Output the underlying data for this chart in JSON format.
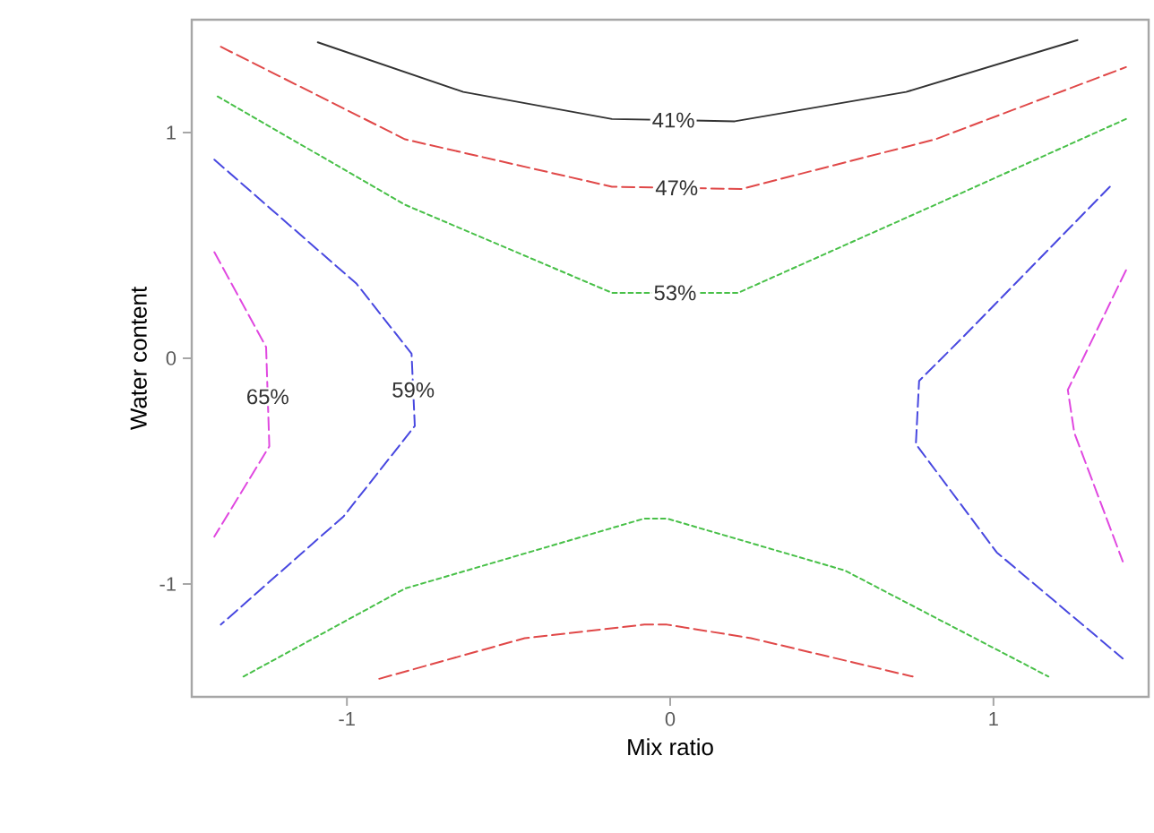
{
  "chart_data": {
    "type": "line",
    "xlabel": "Mix ratio",
    "ylabel": "Water content",
    "xlim": [
      -1.48,
      1.48
    ],
    "ylim": [
      -1.5,
      1.5
    ],
    "xticks": [
      -1,
      0,
      1
    ],
    "yticks": [
      -1,
      0,
      1
    ],
    "grid": false,
    "marker": "none",
    "series": [
      {
        "color": "#333333",
        "line_style": "solid",
        "x": [
          -1.09,
          -0.64,
          -0.18,
          0.2,
          0.73,
          1.26
        ],
        "values": [
          1.4,
          1.18,
          1.06,
          1.05,
          1.18,
          1.41
        ]
      },
      {
        "color": "#e04848",
        "line_style": "dashed",
        "x": [
          -1.39,
          -0.82,
          -0.18,
          0.22,
          0.82,
          1.41
        ],
        "values": [
          1.38,
          0.97,
          0.76,
          0.75,
          0.97,
          1.29
        ]
      },
      {
        "color": "#48c048",
        "line_style": "dotted",
        "x": [
          -1.4,
          -0.82,
          -0.18,
          0.21,
          0.82,
          1.41
        ],
        "values": [
          1.16,
          0.68,
          0.29,
          0.29,
          0.68,
          1.06
        ]
      },
      {
        "color": "#4848e0",
        "line_style": "dashed",
        "x": [
          -1.41,
          -0.97,
          -0.8,
          -0.79,
          -1.01,
          -1.39
        ],
        "values": [
          0.88,
          0.33,
          0.02,
          -0.3,
          -0.7,
          -1.18
        ]
      },
      {
        "color": "#e048e0",
        "line_style": "dashed",
        "x": [
          -1.41,
          -1.25,
          -1.24,
          -1.41
        ],
        "values": [
          0.47,
          0.05,
          -0.39,
          -0.79
        ]
      },
      {
        "color": "#e04848",
        "line_style": "dashed",
        "x": [
          -0.9,
          -0.45,
          -0.08,
          -0.01,
          0.25,
          0.75
        ],
        "values": [
          -1.42,
          -1.24,
          -1.18,
          -1.18,
          -1.24,
          -1.41
        ]
      },
      {
        "color": "#48c048",
        "line_style": "dotted",
        "x": [
          -1.32,
          -0.82,
          -0.08,
          -0.01,
          0.54,
          1.17
        ],
        "values": [
          -1.41,
          -1.02,
          -0.71,
          -0.71,
          -0.94,
          -1.41
        ]
      },
      {
        "color": "#4848e0",
        "line_style": "dashed",
        "x": [
          1.36,
          0.91,
          0.77,
          0.76,
          1.01,
          1.4
        ],
        "values": [
          0.76,
          0.1,
          -0.1,
          -0.38,
          -0.86,
          -1.33
        ]
      },
      {
        "color": "#e048e0",
        "line_style": "dashed",
        "x": [
          1.41,
          1.23,
          1.25,
          1.4
        ],
        "values": [
          0.39,
          -0.14,
          -0.33,
          -0.9
        ]
      }
    ],
    "annotations": [
      "41%",
      "47%",
      "53%",
      "59%",
      "65%"
    ]
  }
}
